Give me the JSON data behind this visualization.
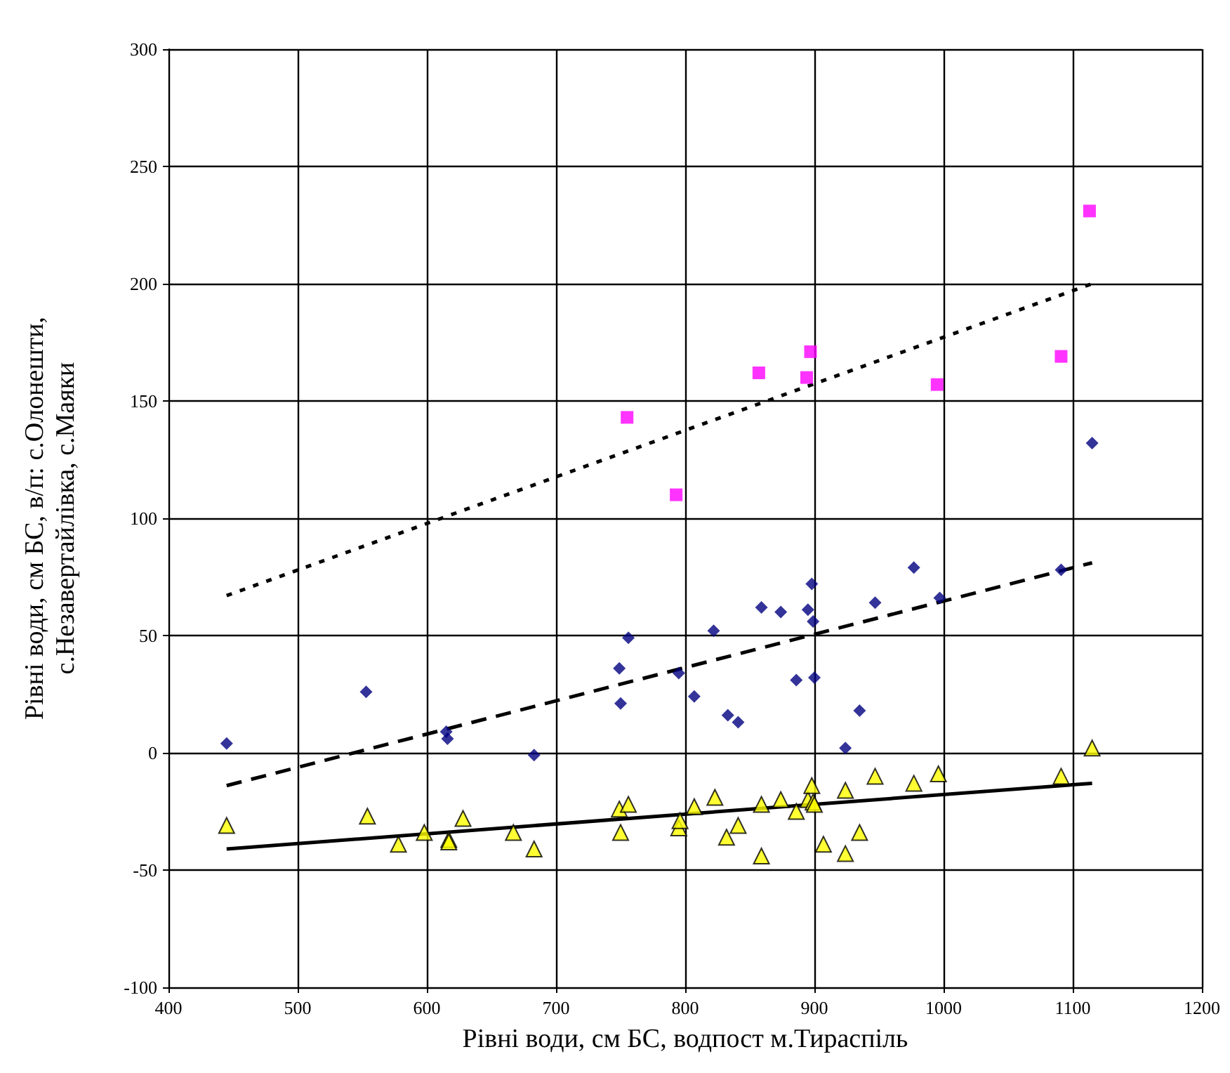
{
  "chart_data": {
    "type": "scatter",
    "xlabel": "Рівні води, см БС, водпост м.Тираспіль",
    "ylabel": "Рівні води, см БС, в/п: с.Олонешти,\nс.Незавертайлівка, с.Маяки",
    "xlim": [
      400,
      1200
    ],
    "xticks": [
      400,
      500,
      600,
      700,
      800,
      900,
      1000,
      1100,
      1200
    ],
    "ylim": [
      -100,
      300
    ],
    "yticks": [
      -100,
      -50,
      0,
      50,
      100,
      150,
      200,
      250,
      300
    ],
    "grid": true,
    "series": [
      {
        "color": "#ff00ff",
        "marker": "square",
        "x": [
          755,
          793,
          857,
          894,
          897,
          995,
          1091,
          1113
        ],
        "values": [
          143,
          110,
          162,
          160,
          171,
          157,
          169,
          231
        ]
      },
      {
        "color": "#000080",
        "marker": "diamond",
        "x": [
          445,
          553,
          615,
          616,
          683,
          749,
          750,
          756,
          795,
          807,
          822,
          833,
          841,
          859,
          874,
          886,
          895,
          898,
          899,
          900,
          924,
          935,
          947,
          977,
          997,
          1091,
          1115
        ],
        "values": [
          4,
          26,
          9,
          6,
          -1,
          36,
          21,
          49,
          34,
          24,
          52,
          16,
          13,
          62,
          60,
          31,
          61,
          72,
          56,
          32,
          2,
          18,
          64,
          79,
          66,
          78,
          132
        ]
      },
      {
        "color": "#ffff00",
        "marker": "triangle",
        "x": [
          445,
          554,
          578,
          598,
          617,
          617,
          628,
          667,
          683,
          749,
          750,
          756,
          795,
          796,
          807,
          823,
          832,
          841,
          859,
          859,
          874,
          886,
          895,
          898,
          899,
          900,
          907,
          924,
          924,
          935,
          947,
          977,
          996,
          1091,
          1115
        ],
        "values": [
          -31,
          -27,
          -39,
          -34,
          -37,
          -38,
          -28,
          -34,
          -41,
          -24,
          -34,
          -22,
          -32,
          -29,
          -23,
          -19,
          -36,
          -31,
          -44,
          -22,
          -20,
          -25,
          -20,
          -14,
          -21,
          -22,
          -39,
          -43,
          -16,
          -34,
          -10,
          -13,
          -9,
          -10,
          2
        ]
      },
      {
        "type": "line",
        "color": "#000000",
        "marker": "none",
        "line_style": "dotted",
        "x": [
          445,
          1115
        ],
        "values": [
          67,
          200
        ]
      },
      {
        "type": "line",
        "color": "#000000",
        "marker": "none",
        "line_style": "dashed",
        "x": [
          445,
          1115
        ],
        "values": [
          -14,
          81
        ]
      },
      {
        "type": "line",
        "color": "#000000",
        "marker": "none",
        "line_style": "solid",
        "x": [
          445,
          1115
        ],
        "values": [
          -41,
          -13
        ]
      }
    ]
  }
}
